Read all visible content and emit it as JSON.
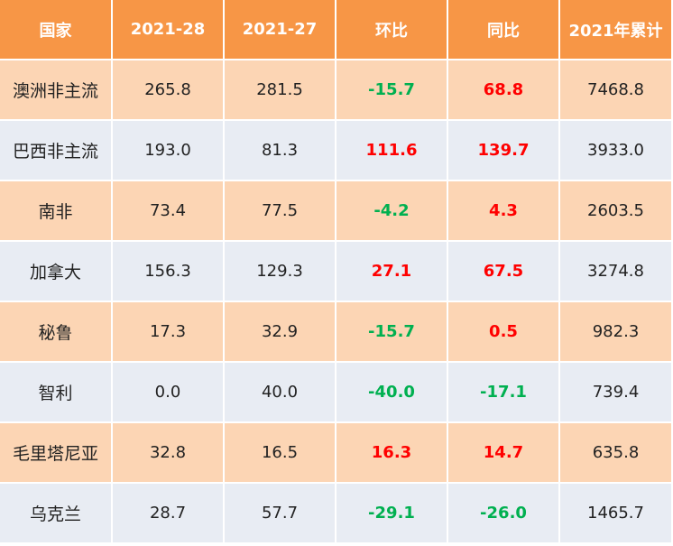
{
  "table": {
    "headers": [
      "国家",
      "2021-28",
      "2021-27",
      "环比",
      "同比",
      "2021年累计"
    ],
    "rows": [
      [
        "澳洲非主流",
        "265.8",
        "281.5",
        "-15.7",
        "68.8",
        "7468.8"
      ],
      [
        "巴西非主流",
        "193.0",
        "81.3",
        "111.6",
        "139.7",
        "3933.0"
      ],
      [
        "南非",
        "73.4",
        "77.5",
        "-4.2",
        "4.3",
        "2603.5"
      ],
      [
        "加拿大",
        "156.3",
        "129.3",
        "27.1",
        "67.5",
        "3274.8"
      ],
      [
        "秘鲁",
        "17.3",
        "32.9",
        "-15.7",
        "0.5",
        "982.3"
      ],
      [
        "智利",
        "0.0",
        "40.0",
        "-40.0",
        "-17.1",
        "739.4"
      ],
      [
        "毛里塔尼亚",
        "32.8",
        "16.5",
        "16.3",
        "14.7",
        "635.8"
      ],
      [
        "乌克兰",
        "28.7",
        "57.7",
        "-29.1",
        "-26.0",
        "1465.7"
      ]
    ]
  },
  "colors": {
    "header_bg": "#f79646",
    "row_orange": "#fcd5b4",
    "row_blue": "#e8ecf3",
    "positive_change": "#ff0000",
    "negative_change": "#00b050"
  }
}
